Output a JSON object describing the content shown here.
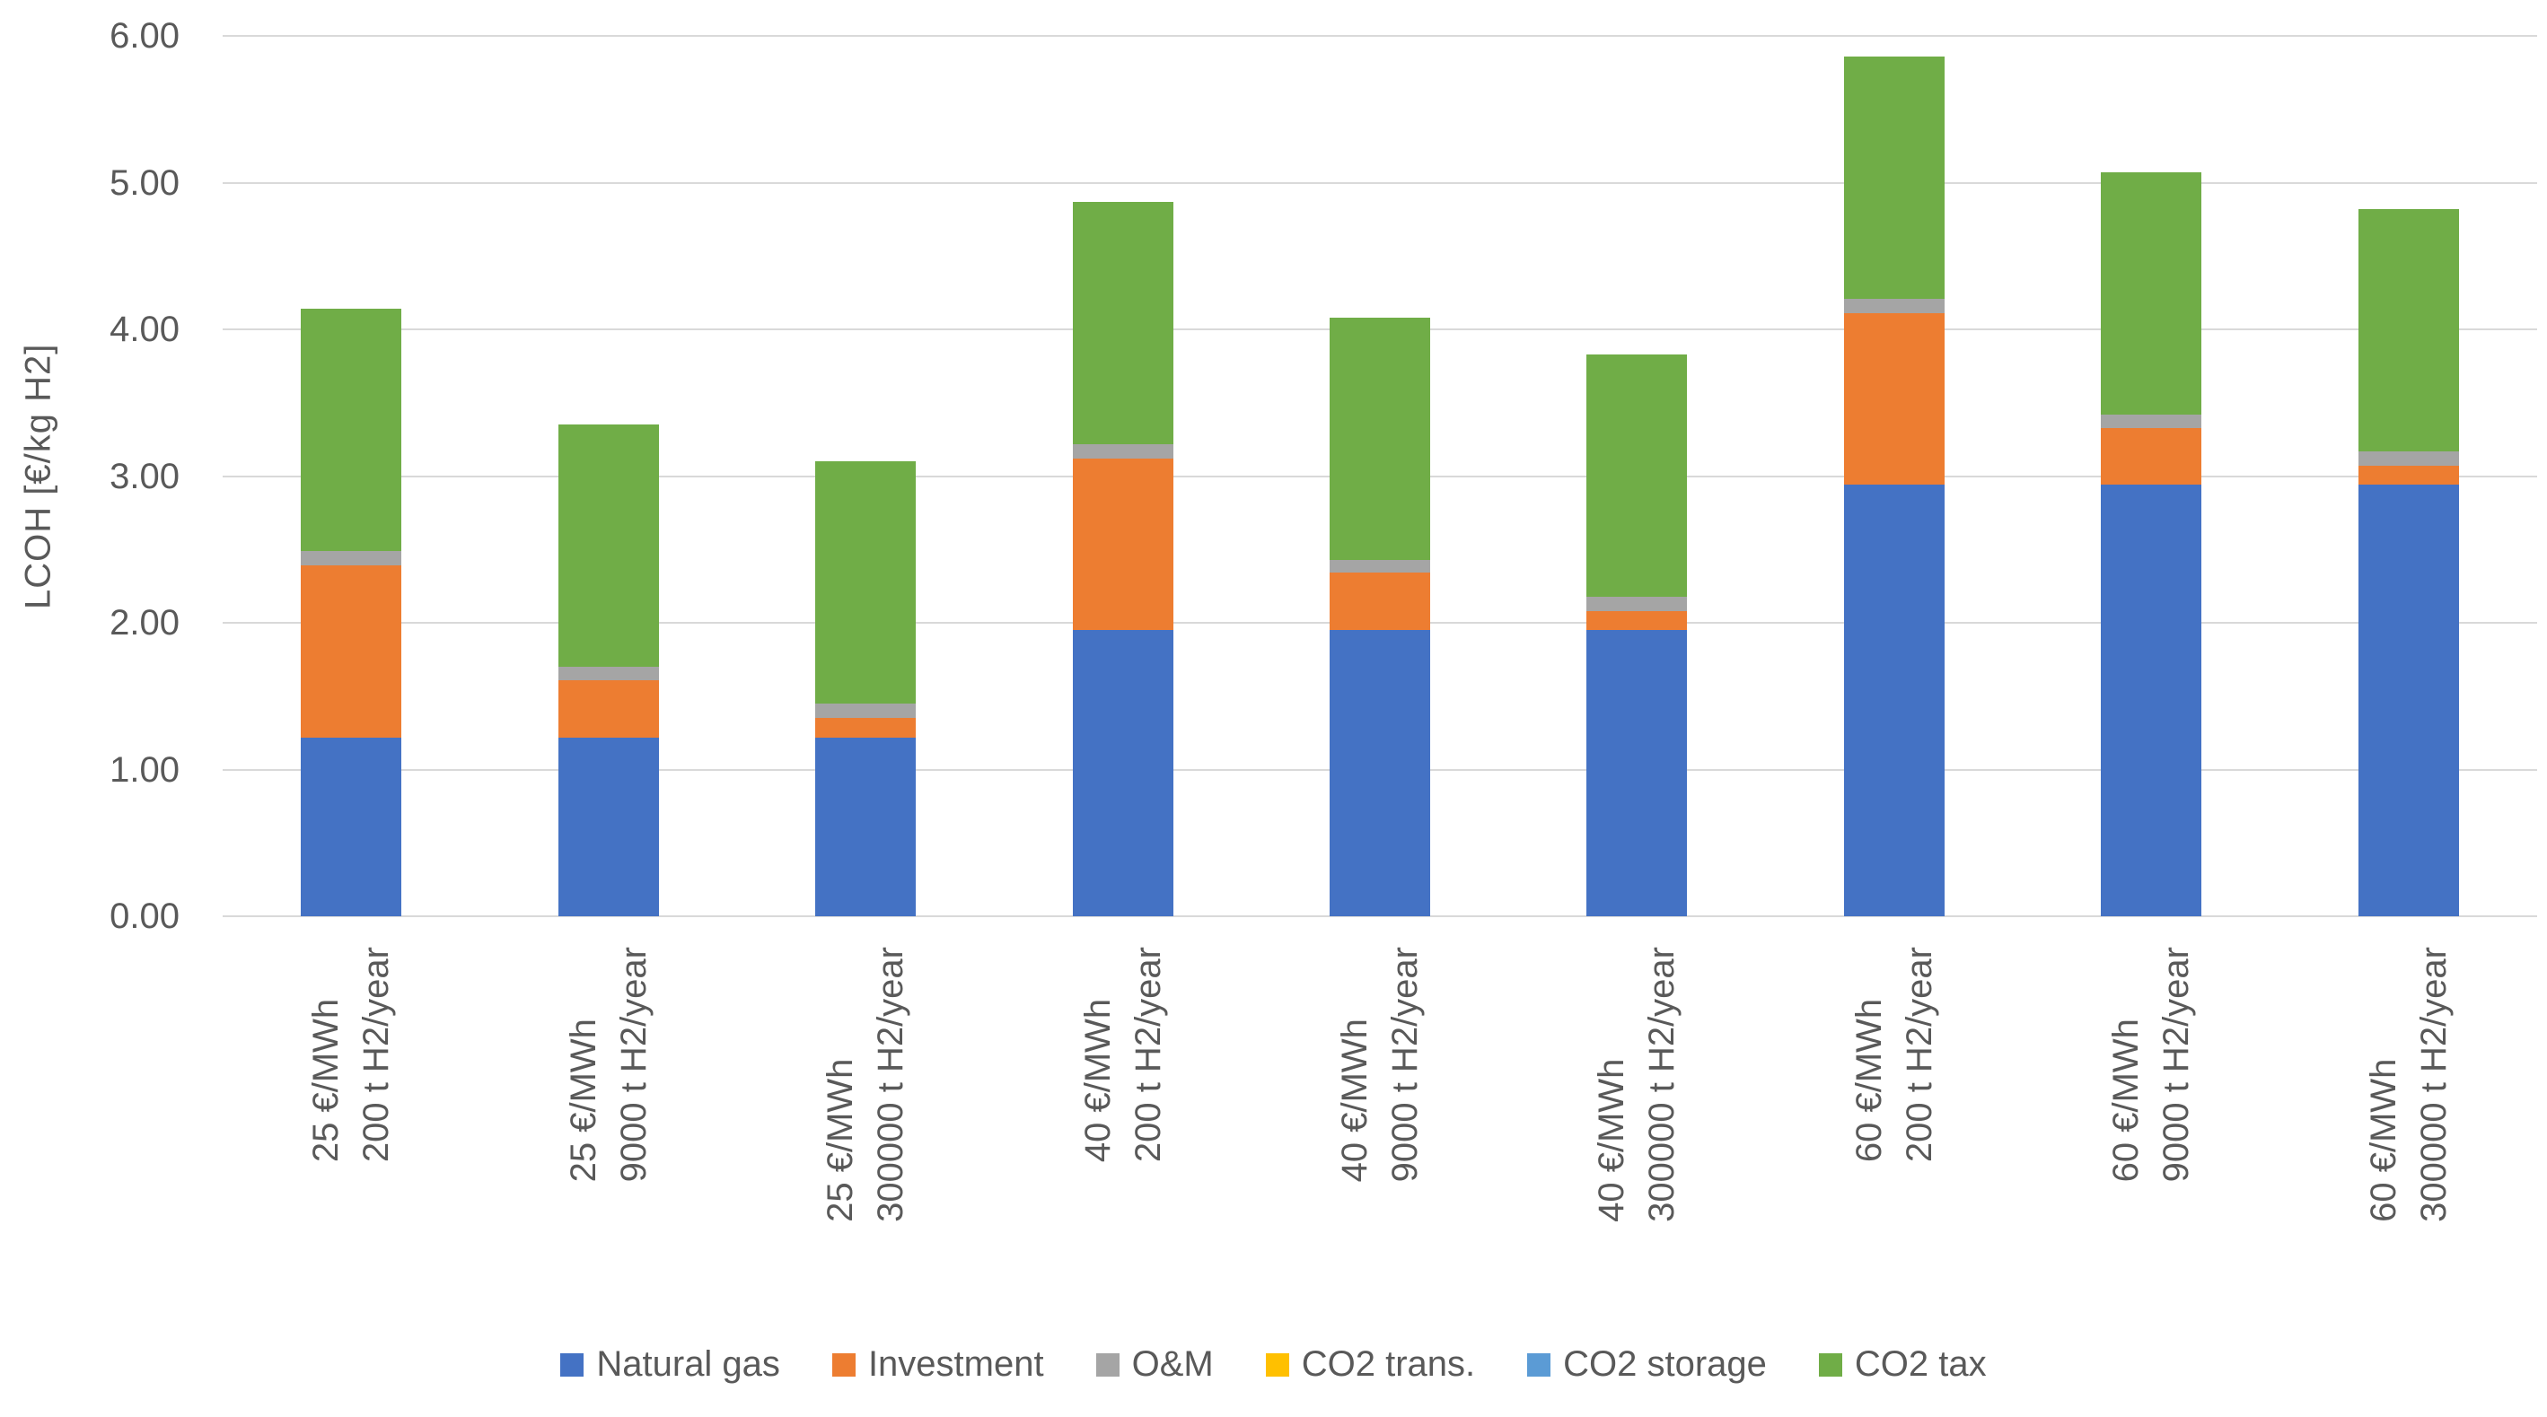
{
  "chart_data": {
    "type": "bar",
    "stacked": true,
    "title": "",
    "xlabel": "",
    "ylabel": "LCOH [€/kg H2]",
    "ylim": [
      0,
      6
    ],
    "grid": true,
    "legend_position": "bottom",
    "yticks": [
      {
        "value": 0,
        "label": "0.00"
      },
      {
        "value": 1,
        "label": "1.00"
      },
      {
        "value": 2,
        "label": "2.00"
      },
      {
        "value": 3,
        "label": "3.00"
      },
      {
        "value": 4,
        "label": "4.00"
      },
      {
        "value": 5,
        "label": "5.00"
      },
      {
        "value": 6,
        "label": "6.00"
      }
    ],
    "categories": [
      {
        "line1": "25 €/MWh",
        "line2": "200 t H2/year"
      },
      {
        "line1": "25 €/MWh",
        "line2": "9000 t H2/year"
      },
      {
        "line1": "25 €/MWh",
        "line2": "300000 t H2/year"
      },
      {
        "line1": "40 €/MWh",
        "line2": "200 t H2/year"
      },
      {
        "line1": "40 €/MWh",
        "line2": "9000 t H2/year"
      },
      {
        "line1": "40 €/MWh",
        "line2": "300000 t H2/year"
      },
      {
        "line1": "60 €/MWh",
        "line2": "200 t H2/year"
      },
      {
        "line1": "60 €/MWh",
        "line2": "9000 t H2/year"
      },
      {
        "line1": "60 €/MWh",
        "line2": "300000 t H2/year"
      }
    ],
    "series": [
      {
        "name": "Natural gas",
        "color": "#4472C4",
        "values": [
          1.22,
          1.22,
          1.22,
          1.95,
          1.95,
          1.95,
          2.94,
          2.94,
          2.94
        ]
      },
      {
        "name": "Investment",
        "color": "#ED7D31",
        "values": [
          1.17,
          0.39,
          0.13,
          1.17,
          0.39,
          0.13,
          1.17,
          0.39,
          0.13
        ]
      },
      {
        "name": "O&M",
        "color": "#A5A5A5",
        "values": [
          0.1,
          0.09,
          0.1,
          0.1,
          0.09,
          0.1,
          0.1,
          0.09,
          0.1
        ]
      },
      {
        "name": "CO2 trans.",
        "color": "#FFC000",
        "values": [
          0,
          0,
          0,
          0,
          0,
          0,
          0,
          0,
          0
        ]
      },
      {
        "name": "CO2 storage",
        "color": "#5B9BD5",
        "values": [
          0,
          0,
          0,
          0,
          0,
          0,
          0,
          0,
          0
        ]
      },
      {
        "name": "CO2 tax",
        "color": "#70AD47",
        "values": [
          1.65,
          1.65,
          1.65,
          1.65,
          1.65,
          1.65,
          1.65,
          1.65,
          1.65
        ]
      }
    ]
  },
  "style": {
    "gridline_color": "#d9d9d9",
    "text_color": "#595959",
    "background_color": "#ffffff"
  }
}
